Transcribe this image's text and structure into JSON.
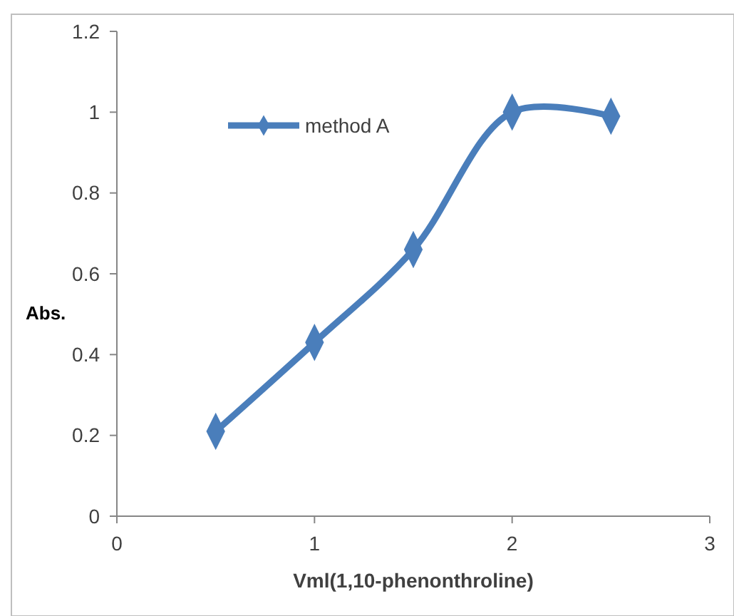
{
  "chart_data": {
    "type": "line",
    "xlabel": "Vml(1,10-phenonthroline)",
    "ylabel": "Abs.",
    "x": [
      0.5,
      1,
      1.5,
      2,
      2.5
    ],
    "series": [
      {
        "name": "method A",
        "color": "#4a7ebb",
        "values": [
          0.21,
          0.43,
          0.66,
          1,
          0.99
        ]
      }
    ],
    "xlim": [
      0,
      3
    ],
    "xticks": [
      0,
      1,
      2,
      3
    ],
    "ylim": [
      0,
      1.2
    ],
    "yticks": [
      0,
      0.2,
      0.4,
      0.6,
      0.8,
      1,
      1.2
    ],
    "marker": "diamond",
    "legend": "top left",
    "grid": false
  }
}
